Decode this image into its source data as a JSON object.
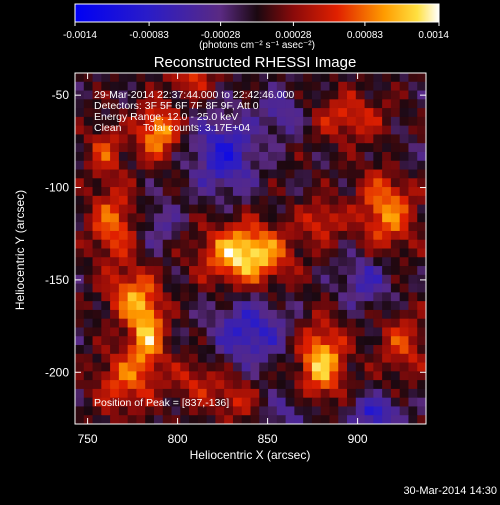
{
  "chart_data": {
    "type": "heatmap",
    "title": "Reconstructed RHESSI Image",
    "xlabel": "Heliocentric X (arcsec)",
    "ylabel": "Heliocentric Y (arcsec)",
    "xlim": [
      743,
      938
    ],
    "ylim": [
      -228,
      -38
    ],
    "x_ticks": [
      750,
      800,
      850,
      900
    ],
    "y_ticks": [
      -50,
      -100,
      -150,
      -200
    ],
    "colorbar": {
      "range": [
        -0.0014,
        0.0014
      ],
      "tick_values": [
        -0.0014,
        -0.00083,
        -0.00028,
        0.00028,
        0.00083,
        0.0014
      ],
      "tick_labels": [
        "-0.0014",
        "-0.00083",
        "-0.00028",
        "0.00028",
        "0.00083",
        "0.0014"
      ],
      "units_label": "(photons cm⁻² s⁻¹ asec⁻²)"
    },
    "annotations": {
      "time_range": "29-Mar-2014 22:37:44.000 to 22:42:46.000",
      "detectors": "Detectors: 3F 5F 6F 7F 8F 9F, Att 0",
      "energy": "Energy Range: 12.0 - 25.0 keV",
      "method": "Clean",
      "counts": "Total counts: 3.17E+04",
      "peak": "Position of Peak = [837,-136]"
    },
    "peak_position": [
      837,
      -136
    ],
    "sources": [
      {
        "x": 838,
        "y": -136,
        "value": 0.00135,
        "sx": 16,
        "sy": 11
      },
      {
        "x": 880,
        "y": -194,
        "value": 0.00115,
        "sx": 9,
        "sy": 14
      },
      {
        "x": 783,
        "y": -178,
        "value": 0.00105,
        "sx": 7,
        "sy": 15
      },
      {
        "x": 789,
        "y": -70,
        "value": 0.00105,
        "sx": 8,
        "sy": 10
      },
      {
        "x": 916,
        "y": -112,
        "value": 0.0009,
        "sx": 11,
        "sy": 16
      },
      {
        "x": 764,
        "y": -120,
        "value": 0.0008,
        "sx": 9,
        "sy": 14
      },
      {
        "x": 773,
        "y": -158,
        "value": 0.00075,
        "sx": 9,
        "sy": 10
      },
      {
        "x": 895,
        "y": -62,
        "value": 0.0006,
        "sx": 14,
        "sy": 9
      },
      {
        "x": 770,
        "y": -205,
        "value": 0.0007,
        "sx": 11,
        "sy": 12
      },
      {
        "x": 808,
        "y": -40,
        "value": 0.0006,
        "sx": 9,
        "sy": 7
      },
      {
        "x": 880,
        "y": -118,
        "value": 0.0006,
        "sx": 8,
        "sy": 8
      },
      {
        "x": 810,
        "y": -205,
        "value": 0.0005,
        "sx": 10,
        "sy": 9
      },
      {
        "x": 760,
        "y": -80,
        "value": 0.0006,
        "sx": 7,
        "sy": 10
      },
      {
        "x": 925,
        "y": -185,
        "value": 0.0006,
        "sx": 9,
        "sy": 12
      },
      {
        "x": 832,
        "y": -215,
        "value": 0.0005,
        "sx": 8,
        "sy": 8
      },
      {
        "x": 826,
        "y": -82,
        "value": -0.0009,
        "sx": 12,
        "sy": 14
      },
      {
        "x": 840,
        "y": -178,
        "value": -0.0008,
        "sx": 14,
        "sy": 12
      },
      {
        "x": 905,
        "y": -150,
        "value": -0.0006,
        "sx": 10,
        "sy": 10
      },
      {
        "x": 858,
        "y": -60,
        "value": -0.0005,
        "sx": 9,
        "sy": 9
      },
      {
        "x": 910,
        "y": -222,
        "value": -0.0008,
        "sx": 10,
        "sy": 6
      },
      {
        "x": 790,
        "y": -120,
        "value": -0.0004,
        "sx": 8,
        "sy": 9
      },
      {
        "x": 862,
        "y": -222,
        "value": -0.0004,
        "sx": 9,
        "sy": 7
      },
      {
        "x": 925,
        "y": -85,
        "value": -0.0003,
        "sx": 7,
        "sy": 8
      }
    ]
  },
  "footer": {
    "timestamp": "30-Mar-2014 14:30"
  }
}
